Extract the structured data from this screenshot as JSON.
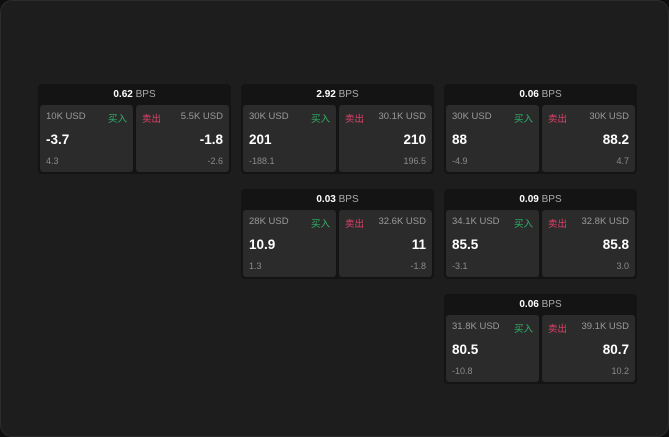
{
  "unit": "BPS",
  "buy_label": "买入",
  "sell_label": "卖出",
  "colors": {
    "buy": "#2fb56a",
    "sell": "#e0416a"
  },
  "cards": [
    {
      "col": 0,
      "row": 0,
      "spread": "0.62",
      "buy": {
        "size": "10K USD",
        "price": "-3.7",
        "change": "4.3"
      },
      "sell": {
        "size": "5.5K USD",
        "price": "-1.8",
        "change": "-2.6"
      }
    },
    {
      "col": 1,
      "row": 0,
      "spread": "2.92",
      "buy": {
        "size": "30K USD",
        "price": "201",
        "change": "-188.1"
      },
      "sell": {
        "size": "30.1K USD",
        "price": "210",
        "change": "196.5"
      }
    },
    {
      "col": 2,
      "row": 0,
      "spread": "0.06",
      "buy": {
        "size": "30K USD",
        "price": "88",
        "change": "-4.9"
      },
      "sell": {
        "size": "30K USD",
        "price": "88.2",
        "change": "4.7"
      }
    },
    {
      "col": 1,
      "row": 1,
      "spread": "0.03",
      "buy": {
        "size": "28K USD",
        "price": "10.9",
        "change": "1.3"
      },
      "sell": {
        "size": "32.6K USD",
        "price": "11",
        "change": "-1.8"
      }
    },
    {
      "col": 2,
      "row": 1,
      "spread": "0.09",
      "buy": {
        "size": "34.1K USD",
        "price": "85.5",
        "change": "-3.1"
      },
      "sell": {
        "size": "32.8K USD",
        "price": "85.8",
        "change": "3.0"
      }
    },
    {
      "col": 2,
      "row": 2,
      "spread": "0.06",
      "buy": {
        "size": "31.8K USD",
        "price": "80.5",
        "change": "-10.8"
      },
      "sell": {
        "size": "39.1K USD",
        "price": "80.7",
        "change": "10.2"
      }
    }
  ]
}
